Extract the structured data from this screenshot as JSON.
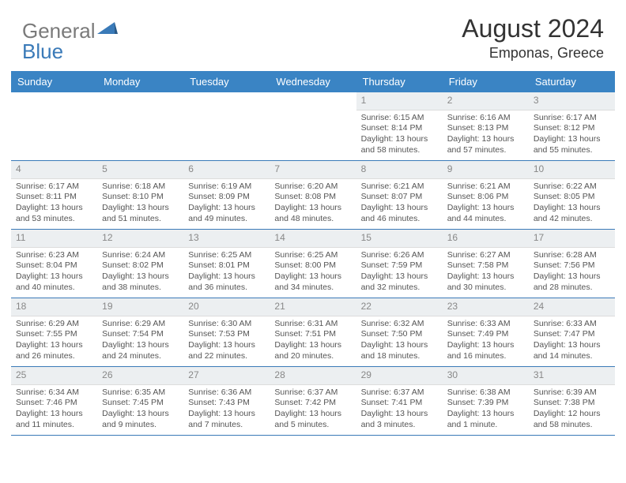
{
  "logo": {
    "part1": "General",
    "part2": "Blue"
  },
  "title": "August 2024",
  "location": "Emponas, Greece",
  "colors": {
    "headerBg": "#3a84c4",
    "headerText": "#ffffff",
    "dayNumBg": "#eceff1",
    "dayNumText": "#888888",
    "bodyText": "#555555",
    "accent": "#3a7ab8",
    "logoGray": "#7a7a7a",
    "logoBlue": "#3a7ab8"
  },
  "dayNames": [
    "Sunday",
    "Monday",
    "Tuesday",
    "Wednesday",
    "Thursday",
    "Friday",
    "Saturday"
  ],
  "weeks": [
    [
      null,
      null,
      null,
      null,
      {
        "n": "1",
        "sr": "Sunrise: 6:15 AM",
        "ss": "Sunset: 8:14 PM",
        "dl": "Daylight: 13 hours and 58 minutes."
      },
      {
        "n": "2",
        "sr": "Sunrise: 6:16 AM",
        "ss": "Sunset: 8:13 PM",
        "dl": "Daylight: 13 hours and 57 minutes."
      },
      {
        "n": "3",
        "sr": "Sunrise: 6:17 AM",
        "ss": "Sunset: 8:12 PM",
        "dl": "Daylight: 13 hours and 55 minutes."
      }
    ],
    [
      {
        "n": "4",
        "sr": "Sunrise: 6:17 AM",
        "ss": "Sunset: 8:11 PM",
        "dl": "Daylight: 13 hours and 53 minutes."
      },
      {
        "n": "5",
        "sr": "Sunrise: 6:18 AM",
        "ss": "Sunset: 8:10 PM",
        "dl": "Daylight: 13 hours and 51 minutes."
      },
      {
        "n": "6",
        "sr": "Sunrise: 6:19 AM",
        "ss": "Sunset: 8:09 PM",
        "dl": "Daylight: 13 hours and 49 minutes."
      },
      {
        "n": "7",
        "sr": "Sunrise: 6:20 AM",
        "ss": "Sunset: 8:08 PM",
        "dl": "Daylight: 13 hours and 48 minutes."
      },
      {
        "n": "8",
        "sr": "Sunrise: 6:21 AM",
        "ss": "Sunset: 8:07 PM",
        "dl": "Daylight: 13 hours and 46 minutes."
      },
      {
        "n": "9",
        "sr": "Sunrise: 6:21 AM",
        "ss": "Sunset: 8:06 PM",
        "dl": "Daylight: 13 hours and 44 minutes."
      },
      {
        "n": "10",
        "sr": "Sunrise: 6:22 AM",
        "ss": "Sunset: 8:05 PM",
        "dl": "Daylight: 13 hours and 42 minutes."
      }
    ],
    [
      {
        "n": "11",
        "sr": "Sunrise: 6:23 AM",
        "ss": "Sunset: 8:04 PM",
        "dl": "Daylight: 13 hours and 40 minutes."
      },
      {
        "n": "12",
        "sr": "Sunrise: 6:24 AM",
        "ss": "Sunset: 8:02 PM",
        "dl": "Daylight: 13 hours and 38 minutes."
      },
      {
        "n": "13",
        "sr": "Sunrise: 6:25 AM",
        "ss": "Sunset: 8:01 PM",
        "dl": "Daylight: 13 hours and 36 minutes."
      },
      {
        "n": "14",
        "sr": "Sunrise: 6:25 AM",
        "ss": "Sunset: 8:00 PM",
        "dl": "Daylight: 13 hours and 34 minutes."
      },
      {
        "n": "15",
        "sr": "Sunrise: 6:26 AM",
        "ss": "Sunset: 7:59 PM",
        "dl": "Daylight: 13 hours and 32 minutes."
      },
      {
        "n": "16",
        "sr": "Sunrise: 6:27 AM",
        "ss": "Sunset: 7:58 PM",
        "dl": "Daylight: 13 hours and 30 minutes."
      },
      {
        "n": "17",
        "sr": "Sunrise: 6:28 AM",
        "ss": "Sunset: 7:56 PM",
        "dl": "Daylight: 13 hours and 28 minutes."
      }
    ],
    [
      {
        "n": "18",
        "sr": "Sunrise: 6:29 AM",
        "ss": "Sunset: 7:55 PM",
        "dl": "Daylight: 13 hours and 26 minutes."
      },
      {
        "n": "19",
        "sr": "Sunrise: 6:29 AM",
        "ss": "Sunset: 7:54 PM",
        "dl": "Daylight: 13 hours and 24 minutes."
      },
      {
        "n": "20",
        "sr": "Sunrise: 6:30 AM",
        "ss": "Sunset: 7:53 PM",
        "dl": "Daylight: 13 hours and 22 minutes."
      },
      {
        "n": "21",
        "sr": "Sunrise: 6:31 AM",
        "ss": "Sunset: 7:51 PM",
        "dl": "Daylight: 13 hours and 20 minutes."
      },
      {
        "n": "22",
        "sr": "Sunrise: 6:32 AM",
        "ss": "Sunset: 7:50 PM",
        "dl": "Daylight: 13 hours and 18 minutes."
      },
      {
        "n": "23",
        "sr": "Sunrise: 6:33 AM",
        "ss": "Sunset: 7:49 PM",
        "dl": "Daylight: 13 hours and 16 minutes."
      },
      {
        "n": "24",
        "sr": "Sunrise: 6:33 AM",
        "ss": "Sunset: 7:47 PM",
        "dl": "Daylight: 13 hours and 14 minutes."
      }
    ],
    [
      {
        "n": "25",
        "sr": "Sunrise: 6:34 AM",
        "ss": "Sunset: 7:46 PM",
        "dl": "Daylight: 13 hours and 11 minutes."
      },
      {
        "n": "26",
        "sr": "Sunrise: 6:35 AM",
        "ss": "Sunset: 7:45 PM",
        "dl": "Daylight: 13 hours and 9 minutes."
      },
      {
        "n": "27",
        "sr": "Sunrise: 6:36 AM",
        "ss": "Sunset: 7:43 PM",
        "dl": "Daylight: 13 hours and 7 minutes."
      },
      {
        "n": "28",
        "sr": "Sunrise: 6:37 AM",
        "ss": "Sunset: 7:42 PM",
        "dl": "Daylight: 13 hours and 5 minutes."
      },
      {
        "n": "29",
        "sr": "Sunrise: 6:37 AM",
        "ss": "Sunset: 7:41 PM",
        "dl": "Daylight: 13 hours and 3 minutes."
      },
      {
        "n": "30",
        "sr": "Sunrise: 6:38 AM",
        "ss": "Sunset: 7:39 PM",
        "dl": "Daylight: 13 hours and 1 minute."
      },
      {
        "n": "31",
        "sr": "Sunrise: 6:39 AM",
        "ss": "Sunset: 7:38 PM",
        "dl": "Daylight: 12 hours and 58 minutes."
      }
    ]
  ]
}
